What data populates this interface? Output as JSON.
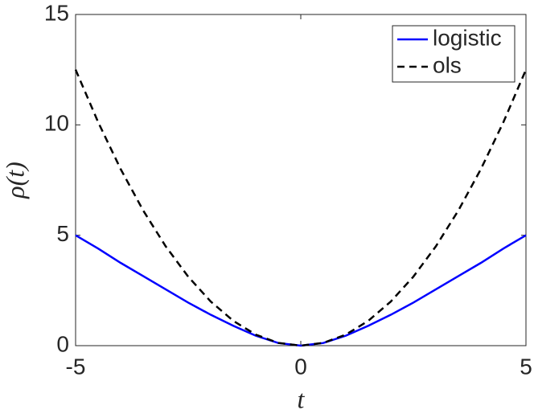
{
  "chart_data": {
    "type": "line",
    "xlabel": "t",
    "ylabel": "ρ(t)",
    "x": [
      -5,
      -4.5,
      -4,
      -3.5,
      -3,
      -2.5,
      -2,
      -1.5,
      -1,
      -0.5,
      0,
      0.5,
      1,
      1.5,
      2,
      2.5,
      3,
      3.5,
      4,
      4.5,
      5
    ],
    "series": [
      {
        "name": "logistic",
        "color": "#0000ff",
        "dash": "solid",
        "values": [
          5.0,
          4.4,
          3.75,
          3.15,
          2.55,
          1.95,
          1.4,
          0.9,
          0.45,
          0.12,
          0,
          0.12,
          0.45,
          0.9,
          1.4,
          1.95,
          2.55,
          3.15,
          3.75,
          4.4,
          5.0
        ]
      },
      {
        "name": "ols",
        "color": "#000000",
        "dash": "dashed",
        "values": [
          12.5,
          10.125,
          8,
          6.125,
          4.5,
          3.125,
          2,
          1.125,
          0.5,
          0.125,
          0,
          0.125,
          0.5,
          1.125,
          2,
          3.125,
          4.5,
          6.125,
          8,
          10.125,
          12.5
        ]
      }
    ],
    "xlim": [
      -5,
      5
    ],
    "ylim": [
      0,
      15
    ],
    "xticks": [
      -5,
      0,
      5
    ],
    "yticks": [
      0,
      5,
      10,
      15
    ],
    "legend": "upper right",
    "grid": false
  }
}
